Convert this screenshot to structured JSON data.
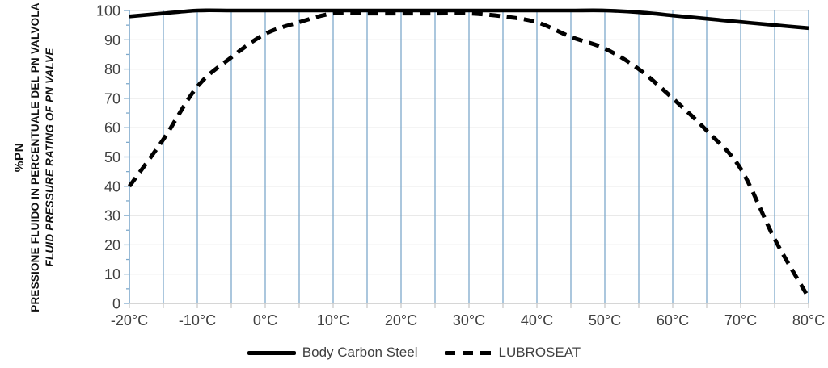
{
  "y_axis_title": {
    "line1": "%PN",
    "line2": "PRESSIONE FLUIDO IN PERCENTUALE DEL PN VALVOLA",
    "line3": "FLUID PRESSURE RATING OF PN VALVE"
  },
  "colors": {
    "grid_vertical_blue": "#7ea9cb",
    "grid_horizontal_gray": "#e2e2e2",
    "axis_line_gray": "#c9c9c9",
    "axis_line_blue": "#7ea9cb",
    "tick_label_text": "#404040",
    "series_line": "#000000",
    "background": "#ffffff"
  },
  "chart_data": {
    "type": "line",
    "title": "",
    "xlabel": "",
    "ylabel": "%PN — PRESSIONE FLUIDO IN PERCENTUALE DEL PN VALVOLA / FLUID PRESSURE RATING OF PN VALVE",
    "x_unit": "°C",
    "xlim": [
      -20,
      80
    ],
    "ylim": [
      0,
      100
    ],
    "grid": true,
    "legend_position": "bottom",
    "x_grid_step": 5,
    "y_grid_step": 10,
    "y_minor_tick_step": 5,
    "x": [
      -20,
      -15,
      -10,
      -5,
      0,
      5,
      10,
      15,
      20,
      25,
      30,
      35,
      40,
      45,
      50,
      55,
      60,
      65,
      70,
      75,
      80
    ],
    "series": [
      {
        "name": "Body Carbon Steel",
        "style": "solid",
        "color": "#000000",
        "values": [
          98,
          99,
          100,
          100,
          100,
          100,
          100,
          100,
          100,
          100,
          100,
          100,
          100,
          100,
          100,
          99.4,
          98.3,
          97.2,
          96.1,
          95,
          94
        ]
      },
      {
        "name": "LUBROSEAT",
        "style": "dashed",
        "color": "#000000",
        "values": [
          40,
          56,
          74,
          84,
          92,
          96,
          99,
          99,
          99,
          99,
          99,
          98,
          96,
          91,
          87,
          80,
          70,
          59,
          46,
          22,
          2
        ]
      }
    ],
    "y_ticks": [
      {
        "value": 0,
        "label": "0"
      },
      {
        "value": 10,
        "label": "10"
      },
      {
        "value": 20,
        "label": "20"
      },
      {
        "value": 30,
        "label": "30"
      },
      {
        "value": 40,
        "label": "40"
      },
      {
        "value": 50,
        "label": "50"
      },
      {
        "value": 60,
        "label": "60"
      },
      {
        "value": 70,
        "label": "70"
      },
      {
        "value": 80,
        "label": "80"
      },
      {
        "value": 90,
        "label": "90"
      },
      {
        "value": 100,
        "label": "100"
      }
    ],
    "x_ticks": [
      {
        "value": -20,
        "label": "-20°C"
      },
      {
        "value": -10,
        "label": "-10°C"
      },
      {
        "value": 0,
        "label": "0°C"
      },
      {
        "value": 10,
        "label": "10°C"
      },
      {
        "value": 20,
        "label": "20°C"
      },
      {
        "value": 30,
        "label": "30°C"
      },
      {
        "value": 40,
        "label": "40°C"
      },
      {
        "value": 50,
        "label": "50°C"
      },
      {
        "value": 60,
        "label": "60°C"
      },
      {
        "value": 70,
        "label": "70°C"
      },
      {
        "value": 80,
        "label": "80°C"
      }
    ]
  }
}
